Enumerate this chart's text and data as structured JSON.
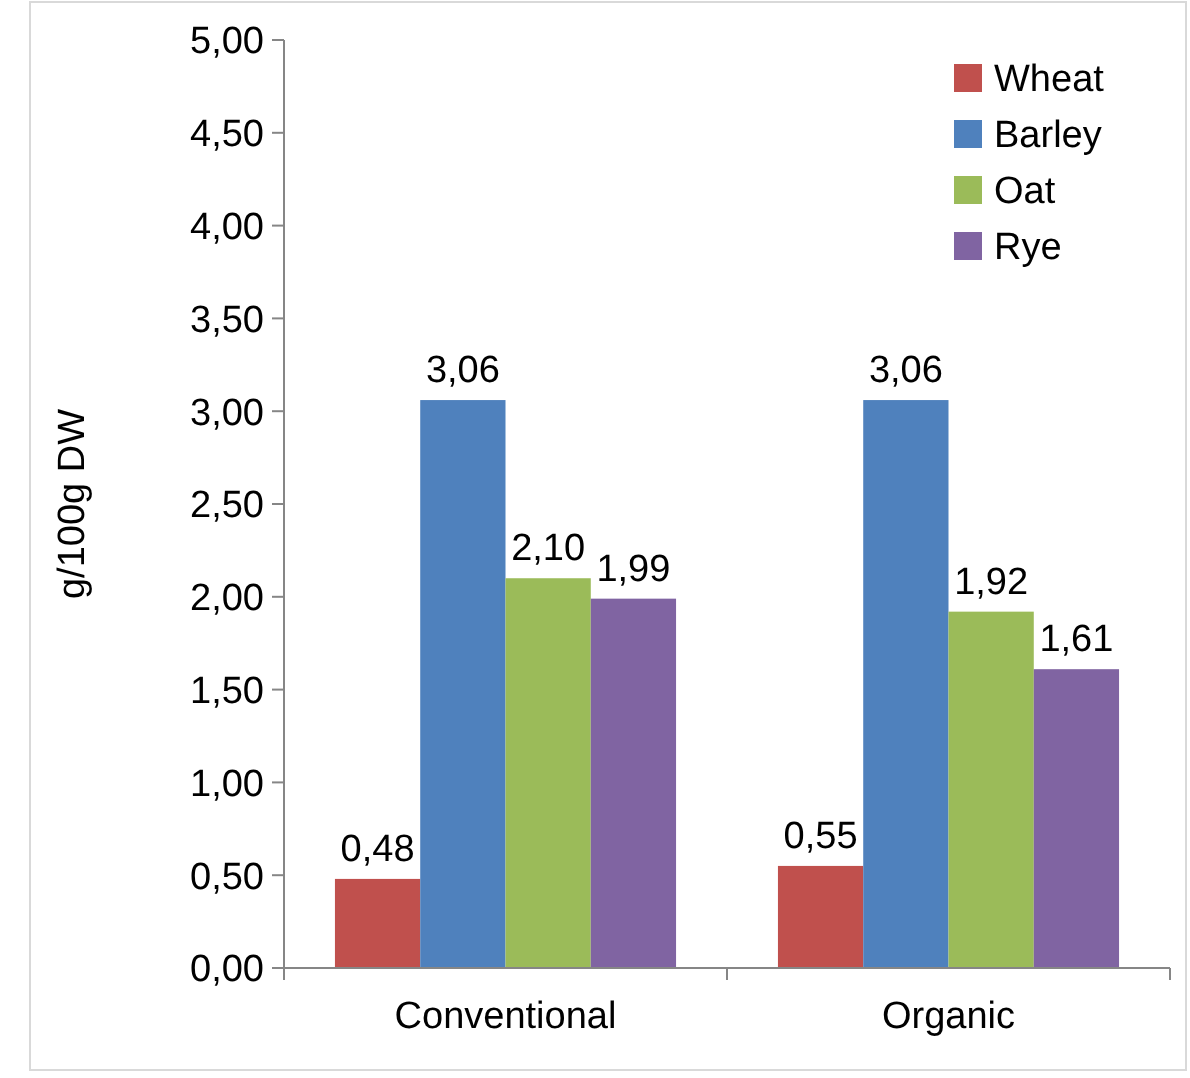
{
  "chart_data": {
    "type": "bar",
    "ylabel": "g/100g DW",
    "categories": [
      "Conventional",
      "Organic"
    ],
    "series": [
      {
        "name": "Wheat",
        "color": "#c0504d",
        "values": [
          0.48,
          0.55
        ],
        "value_labels": [
          "0,48",
          "0,55"
        ]
      },
      {
        "name": "Barley",
        "color": "#4f81bd",
        "values": [
          3.06,
          3.06
        ],
        "value_labels": [
          "3,06",
          "3,06"
        ]
      },
      {
        "name": "Oat",
        "color": "#9bbb59",
        "values": [
          2.1,
          1.92
        ],
        "value_labels": [
          "2,10",
          "1,92"
        ]
      },
      {
        "name": "Rye",
        "color": "#8064a2",
        "values": [
          1.99,
          1.61
        ],
        "value_labels": [
          "1,99",
          "1,61"
        ]
      }
    ],
    "ylim": [
      0,
      5
    ],
    "yticks": [
      {
        "value": 0,
        "label": "0,00"
      },
      {
        "value": 0.5,
        "label": "0,50"
      },
      {
        "value": 1,
        "label": "1,00"
      },
      {
        "value": 1.5,
        "label": "1,50"
      },
      {
        "value": 2,
        "label": "2,00"
      },
      {
        "value": 2.5,
        "label": "2,50"
      },
      {
        "value": 3,
        "label": "3,00"
      },
      {
        "value": 3.5,
        "label": "3,50"
      },
      {
        "value": 4,
        "label": "4,00"
      },
      {
        "value": 4.5,
        "label": "4,50"
      },
      {
        "value": 5,
        "label": "5,00"
      }
    ],
    "grid": false,
    "legend": "top right"
  }
}
